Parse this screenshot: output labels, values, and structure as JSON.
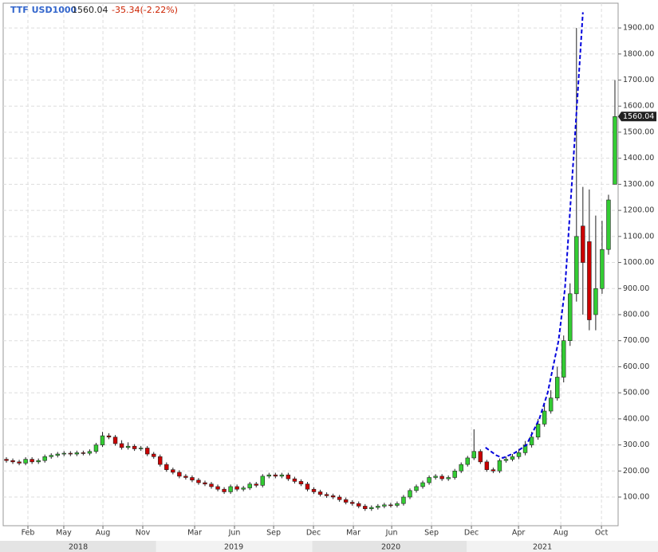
{
  "chart_data": {
    "type": "candlestick",
    "symbol": "TTF USD1000",
    "last": 1560.04,
    "change_label": "-35.34(-2.22%)",
    "up_color": "#33cc33",
    "down_color": "#cc0000",
    "grid": true,
    "categories": [
      null,
      null,
      null,
      null,
      null,
      null,
      null,
      null,
      null,
      null,
      null,
      null,
      null,
      null,
      null,
      null,
      null,
      null,
      null,
      null,
      null,
      null,
      null,
      null,
      null,
      null,
      null,
      null,
      null,
      null,
      null,
      null,
      null,
      null,
      null,
      null,
      null,
      null,
      null,
      null,
      null,
      null,
      null,
      null,
      null,
      null,
      null,
      null,
      null,
      null,
      null,
      null,
      null,
      null,
      null,
      null,
      null,
      null,
      null,
      null,
      null,
      null,
      null,
      null,
      null,
      null,
      null,
      null,
      null,
      null,
      null,
      null,
      null,
      null,
      null,
      null,
      null,
      null,
      null,
      null,
      null,
      null,
      null,
      null,
      null,
      null,
      null,
      null,
      null,
      null,
      null,
      null,
      null,
      null,
      null,
      null
    ],
    "open": [
      245,
      240,
      235,
      230,
      245,
      235,
      240,
      255,
      260,
      265,
      268,
      265,
      270,
      268,
      275,
      300,
      335,
      330,
      305,
      290,
      295,
      285,
      288,
      265,
      255,
      225,
      205,
      195,
      180,
      175,
      165,
      155,
      150,
      140,
      130,
      120,
      140,
      130,
      135,
      150,
      145,
      180,
      185,
      180,
      185,
      170,
      160,
      150,
      130,
      120,
      110,
      105,
      100,
      90,
      80,
      75,
      65,
      55,
      60,
      65,
      70,
      68,
      75,
      100,
      125,
      140,
      155,
      175,
      180,
      170,
      175,
      200,
      225,
      250,
      275,
      235,
      205,
      200,
      240,
      245,
      255,
      270,
      300,
      330,
      380,
      430,
      480,
      560,
      700,
      880,
      1140,
      1080,
      800,
      900,
      1050,
      1300
    ],
    "high": [
      253,
      248,
      243,
      253,
      253,
      248,
      263,
      268,
      273,
      276,
      276,
      278,
      278,
      283,
      308,
      350,
      345,
      338,
      318,
      310,
      303,
      296,
      296,
      273,
      263,
      233,
      213,
      203,
      188,
      183,
      173,
      163,
      158,
      148,
      138,
      148,
      148,
      143,
      158,
      158,
      188,
      193,
      193,
      193,
      193,
      178,
      168,
      158,
      138,
      128,
      118,
      113,
      108,
      98,
      88,
      83,
      73,
      68,
      73,
      78,
      78,
      83,
      108,
      133,
      148,
      163,
      183,
      188,
      188,
      183,
      208,
      233,
      258,
      360,
      283,
      243,
      213,
      248,
      255,
      265,
      285,
      315,
      350,
      400,
      460,
      510,
      600,
      720,
      920,
      1900,
      1290,
      1280,
      1180,
      1160,
      1260,
      1700
    ],
    "low": [
      232,
      227,
      222,
      222,
      227,
      227,
      232,
      247,
      252,
      257,
      257,
      257,
      260,
      260,
      267,
      292,
      322,
      297,
      282,
      282,
      277,
      277,
      257,
      247,
      217,
      197,
      187,
      172,
      167,
      157,
      147,
      142,
      132,
      122,
      112,
      112,
      122,
      122,
      127,
      137,
      137,
      172,
      172,
      172,
      162,
      152,
      142,
      122,
      112,
      102,
      97,
      92,
      82,
      72,
      67,
      57,
      47,
      47,
      52,
      57,
      60,
      60,
      67,
      92,
      117,
      132,
      147,
      167,
      162,
      162,
      167,
      192,
      217,
      242,
      227,
      197,
      192,
      192,
      232,
      237,
      245,
      260,
      290,
      320,
      370,
      420,
      470,
      540,
      680,
      850,
      800,
      740,
      740,
      880,
      1030,
      1300
    ],
    "close": [
      240,
      235,
      230,
      245,
      235,
      240,
      255,
      260,
      265,
      268,
      265,
      270,
      268,
      275,
      300,
      335,
      330,
      305,
      290,
      295,
      285,
      288,
      265,
      255,
      225,
      205,
      195,
      180,
      175,
      165,
      155,
      150,
      140,
      130,
      120,
      140,
      130,
      135,
      150,
      145,
      180,
      185,
      180,
      185,
      170,
      160,
      150,
      130,
      120,
      110,
      105,
      100,
      90,
      80,
      75,
      65,
      55,
      60,
      65,
      70,
      68,
      75,
      100,
      125,
      140,
      155,
      175,
      180,
      170,
      175,
      200,
      225,
      250,
      275,
      235,
      205,
      200,
      240,
      245,
      255,
      270,
      300,
      330,
      380,
      430,
      480,
      560,
      700,
      880,
      1100,
      1000,
      780,
      900,
      1050,
      1240,
      1560
    ],
    "trendline": {
      "color": "#0000dd",
      "x": [
        74.8,
        76.5,
        77.5,
        79.4,
        81.2,
        83.2,
        84.5,
        86.2,
        87.2,
        88.0,
        88.8,
        90.0
      ],
      "values": [
        290,
        260,
        250,
        270,
        300,
        400,
        500,
        700,
        900,
        1200,
        1500,
        1960
      ]
    },
    "ylim": [
      -10,
      1995
    ],
    "yticks": [
      {
        "value": 100,
        "label": "100.00"
      },
      {
        "value": 200,
        "label": "200.00"
      },
      {
        "value": 300,
        "label": "300.00"
      },
      {
        "value": 400,
        "label": "400.00"
      },
      {
        "value": 500,
        "label": "500.00"
      },
      {
        "value": 600,
        "label": "600.00"
      },
      {
        "value": 700,
        "label": "700.00"
      },
      {
        "value": 800,
        "label": "800.00"
      },
      {
        "value": 900,
        "label": "900.00"
      },
      {
        "value": 1000,
        "label": "1000.00"
      },
      {
        "value": 1100,
        "label": "1100.00"
      },
      {
        "value": 1200,
        "label": "1200.00"
      },
      {
        "value": 1300,
        "label": "1300.00"
      },
      {
        "value": 1400,
        "label": "1400.00"
      },
      {
        "value": 1500,
        "label": "1500.00"
      },
      {
        "value": 1600,
        "label": "1600.00"
      },
      {
        "value": 1700,
        "label": "1700.00"
      },
      {
        "value": 1800,
        "label": "1800.00"
      },
      {
        "value": 1900,
        "label": "1900.00"
      }
    ],
    "xticks": [
      {
        "value": 3.36,
        "label": "Feb"
      },
      {
        "value": 8.96,
        "label": "May"
      },
      {
        "value": 15.07,
        "label": "Aug"
      },
      {
        "value": 21.29,
        "label": "Nov"
      },
      {
        "value": 29.39,
        "label": "Mar"
      },
      {
        "value": 35.61,
        "label": "Jun"
      },
      {
        "value": 41.72,
        "label": "Sep"
      },
      {
        "value": 47.94,
        "label": "Dec"
      },
      {
        "value": 54.17,
        "label": "Mar"
      },
      {
        "value": 60.15,
        "label": "Jun"
      },
      {
        "value": 66.37,
        "label": "Sep"
      },
      {
        "value": 72.6,
        "label": "Dec"
      },
      {
        "value": 79.95,
        "label": "Apr"
      },
      {
        "value": 86.55,
        "label": "Aug"
      },
      {
        "value": 92.9,
        "label": "Oct"
      }
    ],
    "years": [
      {
        "value": 11.21,
        "label": "2018"
      },
      {
        "value": 35.49,
        "label": "2019"
      },
      {
        "value": 60.02,
        "label": "2020"
      },
      {
        "value": 83.68,
        "label": "2021"
      }
    ]
  }
}
